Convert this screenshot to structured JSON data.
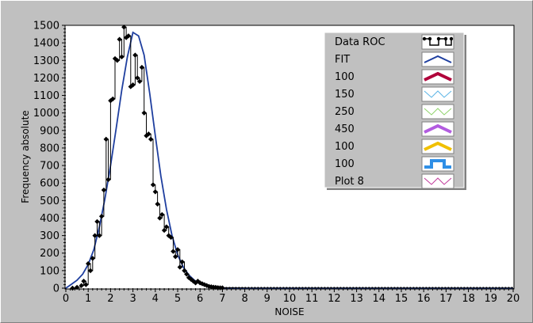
{
  "chart_data": {
    "type": "line",
    "xlabel": "NOISE",
    "ylabel": "Frequency absolute",
    "xlim": [
      0,
      20
    ],
    "ylim": [
      0,
      1500
    ],
    "x_ticks": [
      "0",
      "1",
      "2",
      "3",
      "4",
      "5",
      "6",
      "7",
      "8",
      "9",
      "10",
      "11",
      "12",
      "13",
      "14",
      "15",
      "16",
      "17",
      "18",
      "19",
      "20"
    ],
    "y_ticks": [
      "0",
      "100",
      "200",
      "300",
      "400",
      "500",
      "600",
      "700",
      "800",
      "900",
      "1000",
      "1100",
      "1200",
      "1300",
      "1400",
      "1500"
    ],
    "legend_position": "top-right",
    "legend": [
      {
        "label": "Data ROC",
        "color": "#000000",
        "style": "step-markers"
      },
      {
        "label": "FIT",
        "color": "#1f3f9f",
        "style": "line"
      },
      {
        "label": "100",
        "color": "#b0003a",
        "style": "thick-line"
      },
      {
        "label": "150",
        "color": "#5ab4e6",
        "style": "thin-line"
      },
      {
        "label": "250",
        "color": "#8fd36a",
        "style": "thin-line"
      },
      {
        "label": "450",
        "color": "#b35ce0",
        "style": "thick-line"
      },
      {
        "label": "100",
        "color": "#f0c000",
        "style": "thick-line"
      },
      {
        "label": "100",
        "color": "#2f8fe6",
        "style": "thick-square"
      },
      {
        "label": "Plot 8",
        "color": "#c0389a",
        "style": "thin-line"
      }
    ],
    "series": [
      {
        "name": "Data ROC",
        "color": "#000000",
        "x": [
          0.3,
          0.5,
          0.7,
          0.8,
          0.9,
          1.0,
          1.1,
          1.2,
          1.3,
          1.4,
          1.5,
          1.6,
          1.7,
          1.8,
          1.9,
          2.0,
          2.1,
          2.2,
          2.3,
          2.4,
          2.5,
          2.6,
          2.7,
          2.8,
          2.9,
          3.0,
          3.1,
          3.2,
          3.3,
          3.4,
          3.5,
          3.6,
          3.7,
          3.8,
          3.9,
          4.0,
          4.1,
          4.2,
          4.3,
          4.4,
          4.5,
          4.6,
          4.7,
          4.8,
          4.9,
          5.0,
          5.1,
          5.2,
          5.3,
          5.4,
          5.5,
          5.6,
          5.7,
          5.8,
          5.9,
          6.0,
          6.1,
          6.2,
          6.3,
          6.4,
          6.5,
          6.6,
          6.7,
          6.8,
          6.9,
          7.0,
          7.5,
          8.0,
          9.0,
          10.0,
          12.0,
          15.0,
          20.0
        ],
        "y": [
          0,
          5,
          15,
          40,
          20,
          140,
          100,
          170,
          300,
          380,
          300,
          410,
          560,
          850,
          620,
          1070,
          1080,
          1310,
          1300,
          1420,
          1320,
          1490,
          1430,
          1440,
          1150,
          1160,
          1330,
          1200,
          1180,
          1260,
          1000,
          870,
          880,
          850,
          590,
          550,
          480,
          400,
          420,
          330,
          350,
          300,
          290,
          210,
          180,
          220,
          120,
          150,
          100,
          80,
          60,
          50,
          40,
          30,
          40,
          30,
          25,
          20,
          15,
          10,
          8,
          6,
          5,
          3,
          2,
          2,
          1,
          0,
          0,
          0,
          0,
          0,
          0
        ]
      },
      {
        "name": "FIT",
        "color": "#1f3f9f",
        "x": [
          0.0,
          0.25,
          0.5,
          0.75,
          1.0,
          1.25,
          1.5,
          1.75,
          2.0,
          2.25,
          2.5,
          2.75,
          3.0,
          3.25,
          3.5,
          3.75,
          4.0,
          4.25,
          4.5,
          4.75,
          5.0,
          5.25,
          5.5,
          5.75,
          6.0,
          6.25,
          6.5,
          6.75,
          7.0,
          7.5,
          8.0,
          9.0,
          10.0,
          12.0,
          15.0,
          20.0
        ],
        "y": [
          0,
          22,
          45,
          80,
          135,
          220,
          350,
          510,
          700,
          910,
          1130,
          1320,
          1460,
          1440,
          1330,
          1110,
          870,
          640,
          450,
          300,
          190,
          120,
          75,
          45,
          25,
          14,
          8,
          4,
          2,
          1,
          0,
          0,
          0,
          0,
          0,
          0
        ]
      }
    ]
  }
}
